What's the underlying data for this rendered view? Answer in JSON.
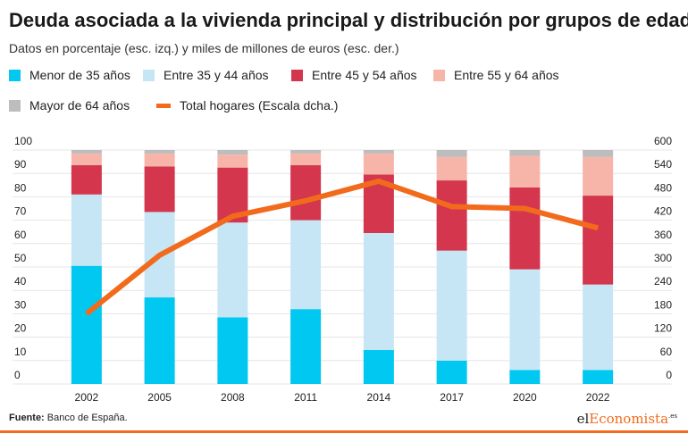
{
  "chart_data": {
    "type": "bar",
    "title": "Deuda asociada a la vivienda principal y distribución por grupos de edad",
    "subtitle": "Datos en porcentaje (esc. izq.) y miles de millones de euros (esc. der.)",
    "stacked": true,
    "categories": [
      "2002",
      "2005",
      "2008",
      "2011",
      "2014",
      "2017",
      "2020",
      "2022"
    ],
    "series": [
      {
        "name": "Menor de 35 años",
        "color": "#00c8f0",
        "values": [
          50.5,
          37,
          28.5,
          32,
          14.5,
          10,
          6,
          6
        ]
      },
      {
        "name": "Entre 35 y 44 años",
        "color": "#c6e6f5",
        "values": [
          30.5,
          36.5,
          40.5,
          38,
          50,
          47,
          43,
          36.5
        ]
      },
      {
        "name": "Entre 45 y 54 años",
        "color": "#d3364d",
        "values": [
          12.5,
          19.5,
          23.5,
          23.5,
          25,
          30,
          35,
          38
        ]
      },
      {
        "name": "Entre 55 y 64 años",
        "color": "#f7b5a9",
        "values": [
          5,
          5.5,
          5.5,
          5,
          9,
          10,
          13.5,
          16.5
        ]
      },
      {
        "name": "Mayor de 64 años",
        "color": "#bdbdbd",
        "values": [
          1.5,
          1.5,
          2,
          1.5,
          1.5,
          3,
          2.5,
          3
        ]
      }
    ],
    "line_series": {
      "name": "Total hogares (Escala dcha.)",
      "color": "#f26b1d",
      "axis": "right",
      "values": [
        180,
        330,
        430,
        470,
        520,
        455,
        450,
        400
      ]
    },
    "ylim": [
      0,
      100
    ],
    "yticks": [
      "100",
      "90",
      "80",
      "70",
      "60",
      "50",
      "40",
      "30",
      "20",
      "10",
      "0"
    ],
    "y2lim": [
      0,
      600
    ],
    "y2ticks": [
      "600",
      "540",
      "480",
      "420",
      "360",
      "300",
      "240",
      "180",
      "120",
      "60",
      "0"
    ],
    "legend_position": "top",
    "grid": true
  },
  "footer": {
    "source_label": "Fuente:",
    "source_text": "Banco de España.",
    "logo_prefix": "el",
    "logo_accent": "Economista",
    "logo_suffix": ".es"
  }
}
